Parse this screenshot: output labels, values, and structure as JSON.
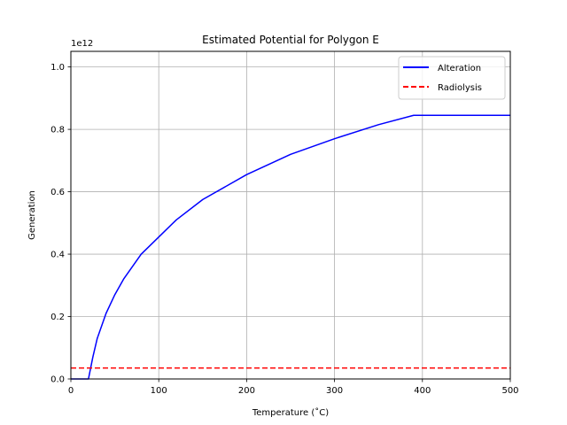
{
  "chart_data": {
    "type": "line",
    "title": "Estimated Potential for Polygon E",
    "xlabel": "Temperature (˚C)",
    "ylabel": "Generation",
    "y_offset_label": "1e12",
    "xlim": [
      0,
      500
    ],
    "ylim": [
      0,
      1.05
    ],
    "y_scale_factor": 1000000000000.0,
    "xticks": [
      0,
      100,
      200,
      300,
      400,
      500
    ],
    "xtick_labels": [
      "0",
      "100",
      "200",
      "300",
      "400",
      "500"
    ],
    "yticks": [
      0,
      0.2,
      0.4,
      0.6,
      0.8,
      1.0
    ],
    "ytick_labels": [
      "0.0",
      "0.2",
      "0.4",
      "0.6",
      "0.8",
      "1.0"
    ],
    "grid": true,
    "legend_position": "top-right",
    "series": [
      {
        "name": "Alteration",
        "color": "#0000ff",
        "style": "solid",
        "x": [
          0,
          20,
          25,
          30,
          40,
          50,
          60,
          80,
          100,
          120,
          150,
          200,
          250,
          300,
          350,
          390,
          500
        ],
        "y": [
          0,
          0,
          0.07,
          0.13,
          0.21,
          0.27,
          0.32,
          0.4,
          0.455,
          0.51,
          0.575,
          0.655,
          0.72,
          0.77,
          0.815,
          0.845,
          0.845
        ]
      },
      {
        "name": "Radiolysis",
        "color": "#ff0000",
        "style": "dashed",
        "x": [
          0,
          500
        ],
        "y": [
          0.035,
          0.035
        ]
      }
    ]
  }
}
